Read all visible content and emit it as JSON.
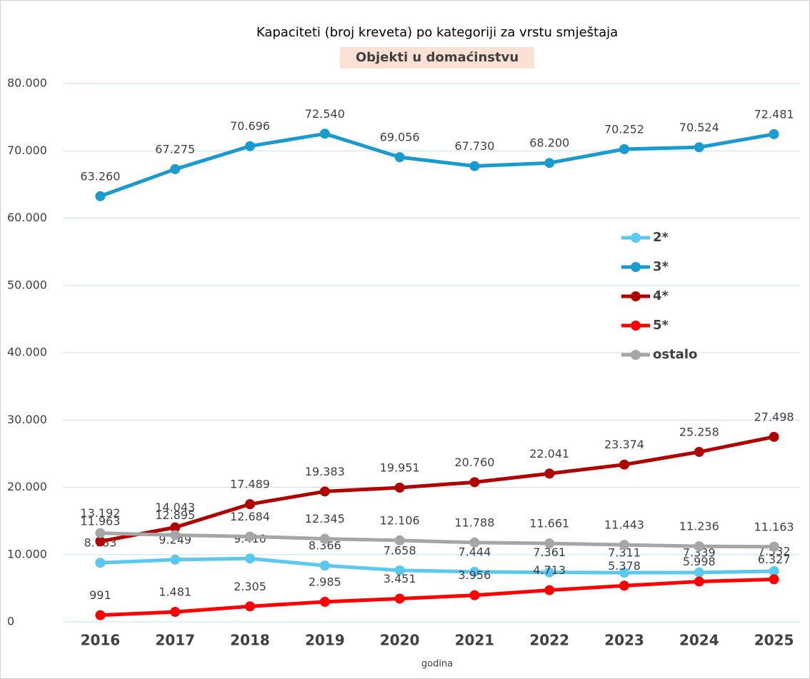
{
  "chart_data": {
    "type": "line",
    "title": "Kapaciteti (broj kreveta) po kategoriji za vrstu smještaja",
    "subtitle": "Objekti u domaćinstvu",
    "x_label": "godina",
    "categories": [
      "2016",
      "2017",
      "2018",
      "2019",
      "2020",
      "2021",
      "2022",
      "2023",
      "2024",
      "2025"
    ],
    "series": [
      {
        "name": "2*",
        "color": "#5bc8f0",
        "values": [
          8783,
          9249,
          9410,
          8366,
          7658,
          7444,
          7361,
          7311,
          7339,
          7532
        ],
        "value_labels": [
          "8.783",
          "9.249",
          "9.410",
          "8.366",
          "7.658",
          "7.444",
          "7.361",
          "7.311",
          "7.339",
          "7.532"
        ]
      },
      {
        "name": "3*",
        "color": "#1a9bd0",
        "values": [
          63260,
          67275,
          70696,
          72540,
          69056,
          67730,
          68200,
          70252,
          70524,
          72481
        ],
        "value_labels": [
          "63.260",
          "67.275",
          "70.696",
          "72.540",
          "69.056",
          "67.730",
          "68.200",
          "70.252",
          "70.524",
          "72.481"
        ]
      },
      {
        "name": "4*",
        "color": "#b00000",
        "values": [
          11963,
          14043,
          17489,
          19383,
          19951,
          20760,
          22041,
          23374,
          25258,
          27498
        ],
        "value_labels": [
          "11.963",
          "14.043",
          "17.489",
          "19.383",
          "19.951",
          "20.760",
          "22.041",
          "23.374",
          "25.258",
          "27.498"
        ]
      },
      {
        "name": "5*",
        "color": "#ff0000",
        "values": [
          991,
          1481,
          2305,
          2985,
          3451,
          3956,
          4713,
          5378,
          5998,
          6327
        ],
        "value_labels": [
          "991",
          "1.481",
          "2.305",
          "2.985",
          "3.451",
          "3.956",
          "4.713",
          "5.378",
          "5.998",
          "6.327"
        ]
      },
      {
        "name": "ostalo",
        "color": "#a6a6a6",
        "values": [
          13192,
          12895,
          12684,
          12345,
          12106,
          11788,
          11661,
          11443,
          11236,
          11163
        ],
        "value_labels": [
          "13.192",
          "12.895",
          "12.684",
          "12.345",
          "12.106",
          "11.788",
          "11.661",
          "11.443",
          "11.236",
          "11.163"
        ]
      }
    ],
    "ylim": [
      0,
      80000
    ],
    "yticks": [
      0,
      {
        "value": 10000,
        "label": "10.000"
      },
      {
        "value": 20000,
        "label": "20.000"
      },
      {
        "value": 30000,
        "label": "30.000"
      },
      {
        "value": 40000,
        "label": "40.000"
      },
      {
        "value": 50000,
        "label": "50.000"
      },
      {
        "value": 60000,
        "label": "60.000"
      },
      {
        "value": 70000,
        "label": "70.000"
      },
      {
        "value": 80000,
        "label": "80.000"
      }
    ],
    "grid": true,
    "legend": "right"
  }
}
